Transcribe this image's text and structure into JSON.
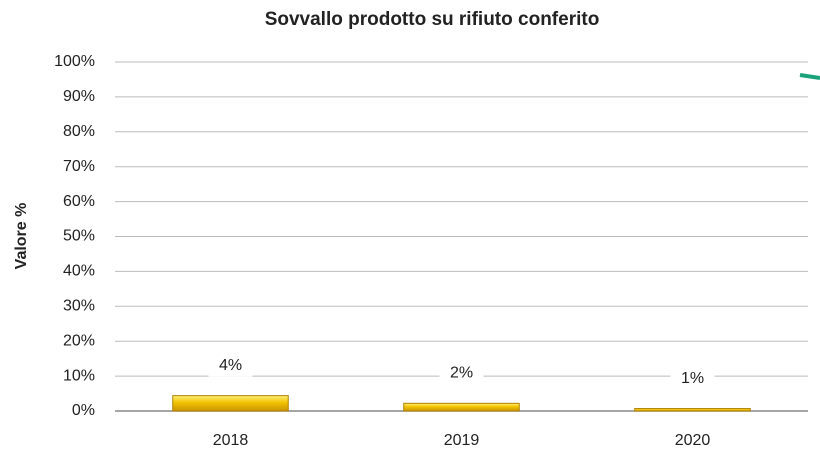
{
  "chart_data": {
    "type": "bar",
    "title": "Sovvallo prodotto su rifiuto conferito",
    "y_label": "Valore %",
    "categories": [
      "2018",
      "2019",
      "2020"
    ],
    "values": [
      4.4,
      2.2,
      0.7
    ],
    "value_labels": [
      "4%",
      "2%",
      "1%"
    ],
    "color": "#f2c200",
    "ylim": [
      0,
      100
    ],
    "yticks": [
      {
        "value": 0,
        "label": "0%"
      },
      {
        "value": 10,
        "label": "10%"
      },
      {
        "value": 20,
        "label": "20%"
      },
      {
        "value": 30,
        "label": "30%"
      },
      {
        "value": 40,
        "label": "40%"
      },
      {
        "value": 50,
        "label": "50%"
      },
      {
        "value": 60,
        "label": "60%"
      },
      {
        "value": 70,
        "label": "70%"
      },
      {
        "value": 80,
        "label": "80%"
      },
      {
        "value": 90,
        "label": "90%"
      },
      {
        "value": 100,
        "label": "100%"
      }
    ],
    "grid": true
  }
}
